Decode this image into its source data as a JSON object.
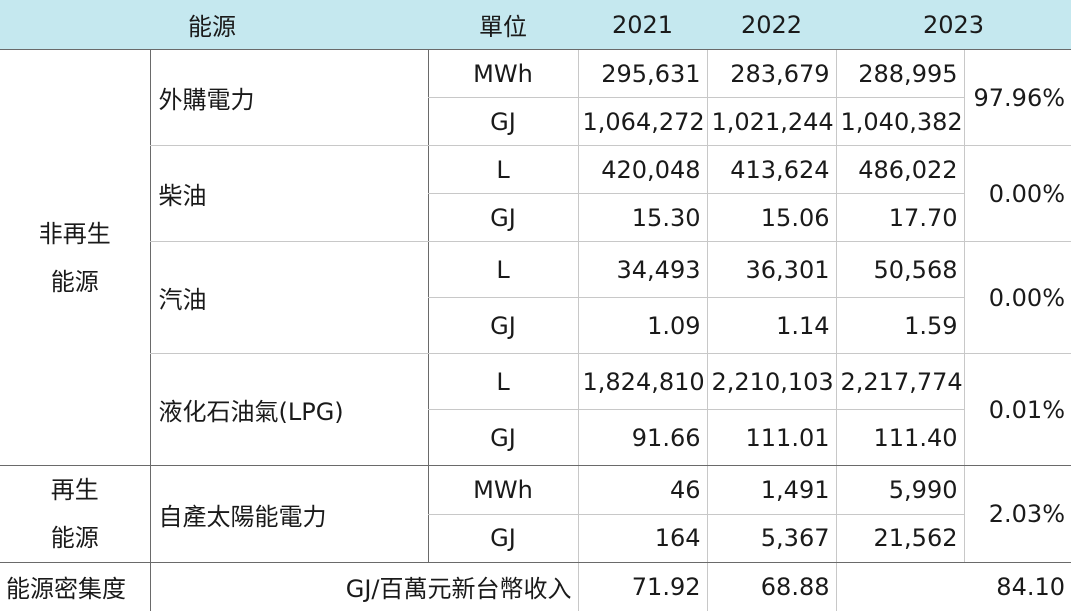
{
  "header": {
    "energy": "能源",
    "unit": "單位",
    "years": [
      "2021",
      "2022",
      "2023"
    ]
  },
  "categories": {
    "nonrenewable_line1": "非再生",
    "nonrenewable_line2": "能源",
    "renewable_line1": "再生",
    "renewable_line2": "能源"
  },
  "sources": [
    {
      "name": "外購電力",
      "share": "97.96%",
      "rows": [
        {
          "unit": "MWh",
          "values": [
            "295,631",
            "283,679",
            "288,995"
          ]
        },
        {
          "unit": "GJ",
          "values": [
            "1,064,272",
            "1,021,244",
            "1,040,382"
          ]
        }
      ]
    },
    {
      "name": "柴油",
      "share": "0.00%",
      "rows": [
        {
          "unit": "L",
          "values": [
            "420,048",
            "413,624",
            "486,022"
          ]
        },
        {
          "unit": "GJ",
          "values": [
            "15.30",
            "15.06",
            "17.70"
          ]
        }
      ]
    },
    {
      "name": "汽油",
      "share": "0.00%",
      "rows": [
        {
          "unit": "L",
          "values": [
            "34,493",
            "36,301",
            "50,568"
          ]
        },
        {
          "unit": "GJ",
          "values": [
            "1.09",
            "1.14",
            "1.59"
          ]
        }
      ]
    },
    {
      "name": "液化石油氣(LPG)",
      "share": "0.01%",
      "rows": [
        {
          "unit": "L",
          "values": [
            "1,824,810",
            "2,210,103",
            "2,217,774"
          ]
        },
        {
          "unit": "GJ",
          "values": [
            "91.66",
            "111.01",
            "111.40"
          ]
        }
      ]
    },
    {
      "name": "自產太陽能電力",
      "share": "2.03%",
      "rows": [
        {
          "unit": "MWh",
          "values": [
            "46",
            "1,491",
            "5,990"
          ]
        },
        {
          "unit": "GJ",
          "values": [
            "164",
            "5,367",
            "21,562"
          ]
        }
      ]
    }
  ],
  "intensity": {
    "label": "能源密集度",
    "unit": "GJ/百萬元新台幣收入",
    "values": [
      "71.92",
      "68.88",
      "84.10"
    ]
  }
}
